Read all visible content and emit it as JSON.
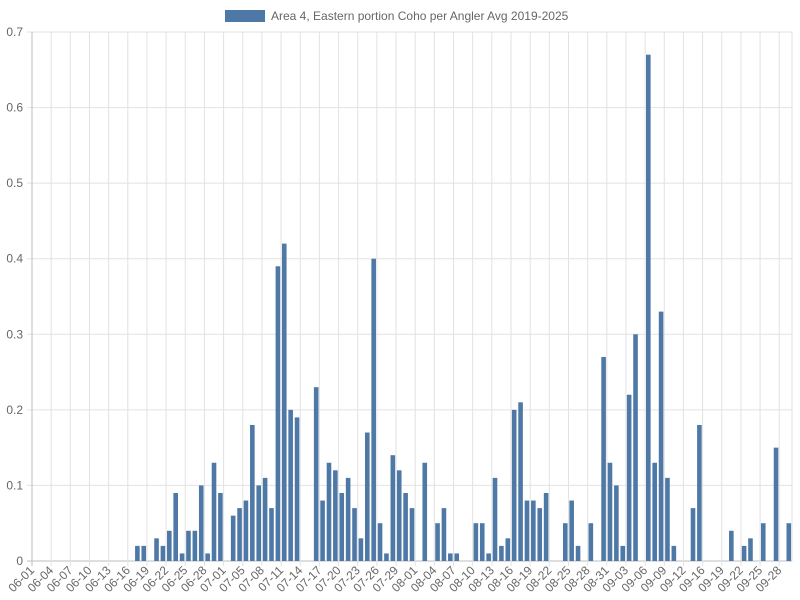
{
  "chart_data": {
    "type": "bar",
    "legend": {
      "label": "Area 4, Eastern portion Coho per Angler Avg 2019-2025",
      "color": "#4e79a7",
      "position": "top-center"
    },
    "bar_color": "#4e79a7",
    "grid": true,
    "ylim": [
      0,
      0.7
    ],
    "y_ticks": [
      0,
      0.1,
      0.2,
      0.3,
      0.4,
      0.5,
      0.6,
      0.7
    ],
    "y_tick_labels": [
      "0",
      "0.1",
      "0.2",
      "0.3",
      "0.4",
      "0.5",
      "0.6",
      "0.7"
    ],
    "x_tick_labels": [
      "06-01",
      "06-04",
      "06-07",
      "06-10",
      "06-13",
      "06-16",
      "06-19",
      "06-22",
      "06-25",
      "06-28",
      "07-01",
      "07-05",
      "07-08",
      "07-11",
      "07-14",
      "07-17",
      "07-20",
      "07-23",
      "07-26",
      "07-29",
      "08-01",
      "08-04",
      "08-07",
      "08-10",
      "08-13",
      "08-16",
      "08-19",
      "08-22",
      "08-25",
      "08-28",
      "08-31",
      "09-03",
      "09-06",
      "09-09",
      "09-12",
      "09-16",
      "09-19",
      "09-22",
      "09-25",
      "09-28"
    ],
    "values": [
      0,
      0,
      0,
      0,
      0,
      0,
      0,
      0,
      0,
      0,
      0,
      0,
      0,
      0,
      0,
      0,
      0.02,
      0.02,
      0,
      0.03,
      0.02,
      0.04,
      0.09,
      0.01,
      0.04,
      0.04,
      0.1,
      0.01,
      0.13,
      0.09,
      0,
      0.06,
      0.07,
      0.08,
      0.18,
      0.1,
      0.11,
      0.07,
      0.39,
      0.42,
      0.2,
      0.19,
      0,
      0,
      0.23,
      0.08,
      0.13,
      0.12,
      0.09,
      0.11,
      0.07,
      0.03,
      0.17,
      0.4,
      0.05,
      0.01,
      0.14,
      0.12,
      0.09,
      0.07,
      0,
      0.13,
      0,
      0.05,
      0.07,
      0.01,
      0.01,
      0,
      0,
      0.05,
      0.05,
      0.01,
      0.11,
      0.02,
      0.03,
      0.2,
      0.21,
      0.08,
      0.08,
      0.07,
      0.09,
      0,
      0,
      0.05,
      0.08,
      0.02,
      0,
      0.05,
      0,
      0.27,
      0.13,
      0.1,
      0.02,
      0.22,
      0.3,
      0,
      0.67,
      0.13,
      0.33,
      0.11,
      0.02,
      0,
      0,
      0.07,
      0.18,
      0,
      0,
      0,
      0,
      0.04,
      0,
      0.02,
      0.03,
      0,
      0.05,
      0,
      0.15,
      0,
      0.05
    ]
  }
}
